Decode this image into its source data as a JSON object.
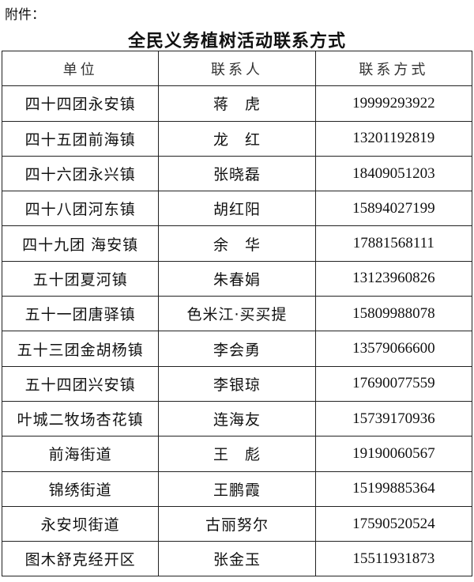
{
  "attachment_label": "附件：",
  "title": "全民义务植树活动联系方式",
  "table": {
    "headers": [
      "单位",
      "联系人",
      "联系方式"
    ],
    "rows": [
      [
        "四十四团永安镇",
        "蒋　虎",
        "19999293922"
      ],
      [
        "四十五团前海镇",
        "龙　红",
        "13201192819"
      ],
      [
        "四十六团永兴镇",
        "张晓磊",
        "18409051203"
      ],
      [
        "四十八团河东镇",
        "胡红阳",
        "15894027199"
      ],
      [
        "四十九团 海安镇",
        "余　华",
        "17881568111"
      ],
      [
        "五十团夏河镇",
        "朱春娟",
        "13123960826"
      ],
      [
        "五十一团唐驿镇",
        "色米江·买买提",
        "15809988078"
      ],
      [
        "五十三团金胡杨镇",
        "李会勇",
        "13579066600"
      ],
      [
        "五十四团兴安镇",
        "李银琼",
        "17690077559"
      ],
      [
        "叶城二牧场杏花镇",
        "连海友",
        "15739170936"
      ],
      [
        "前海街道",
        "王　彪",
        "19190060567"
      ],
      [
        "锦绣街道",
        "王鹏霞",
        "15199885364"
      ],
      [
        "永安坝街道",
        "古丽努尔",
        "17590520524"
      ],
      [
        "图木舒克经开区",
        "张金玉",
        "15511931873"
      ]
    ]
  }
}
